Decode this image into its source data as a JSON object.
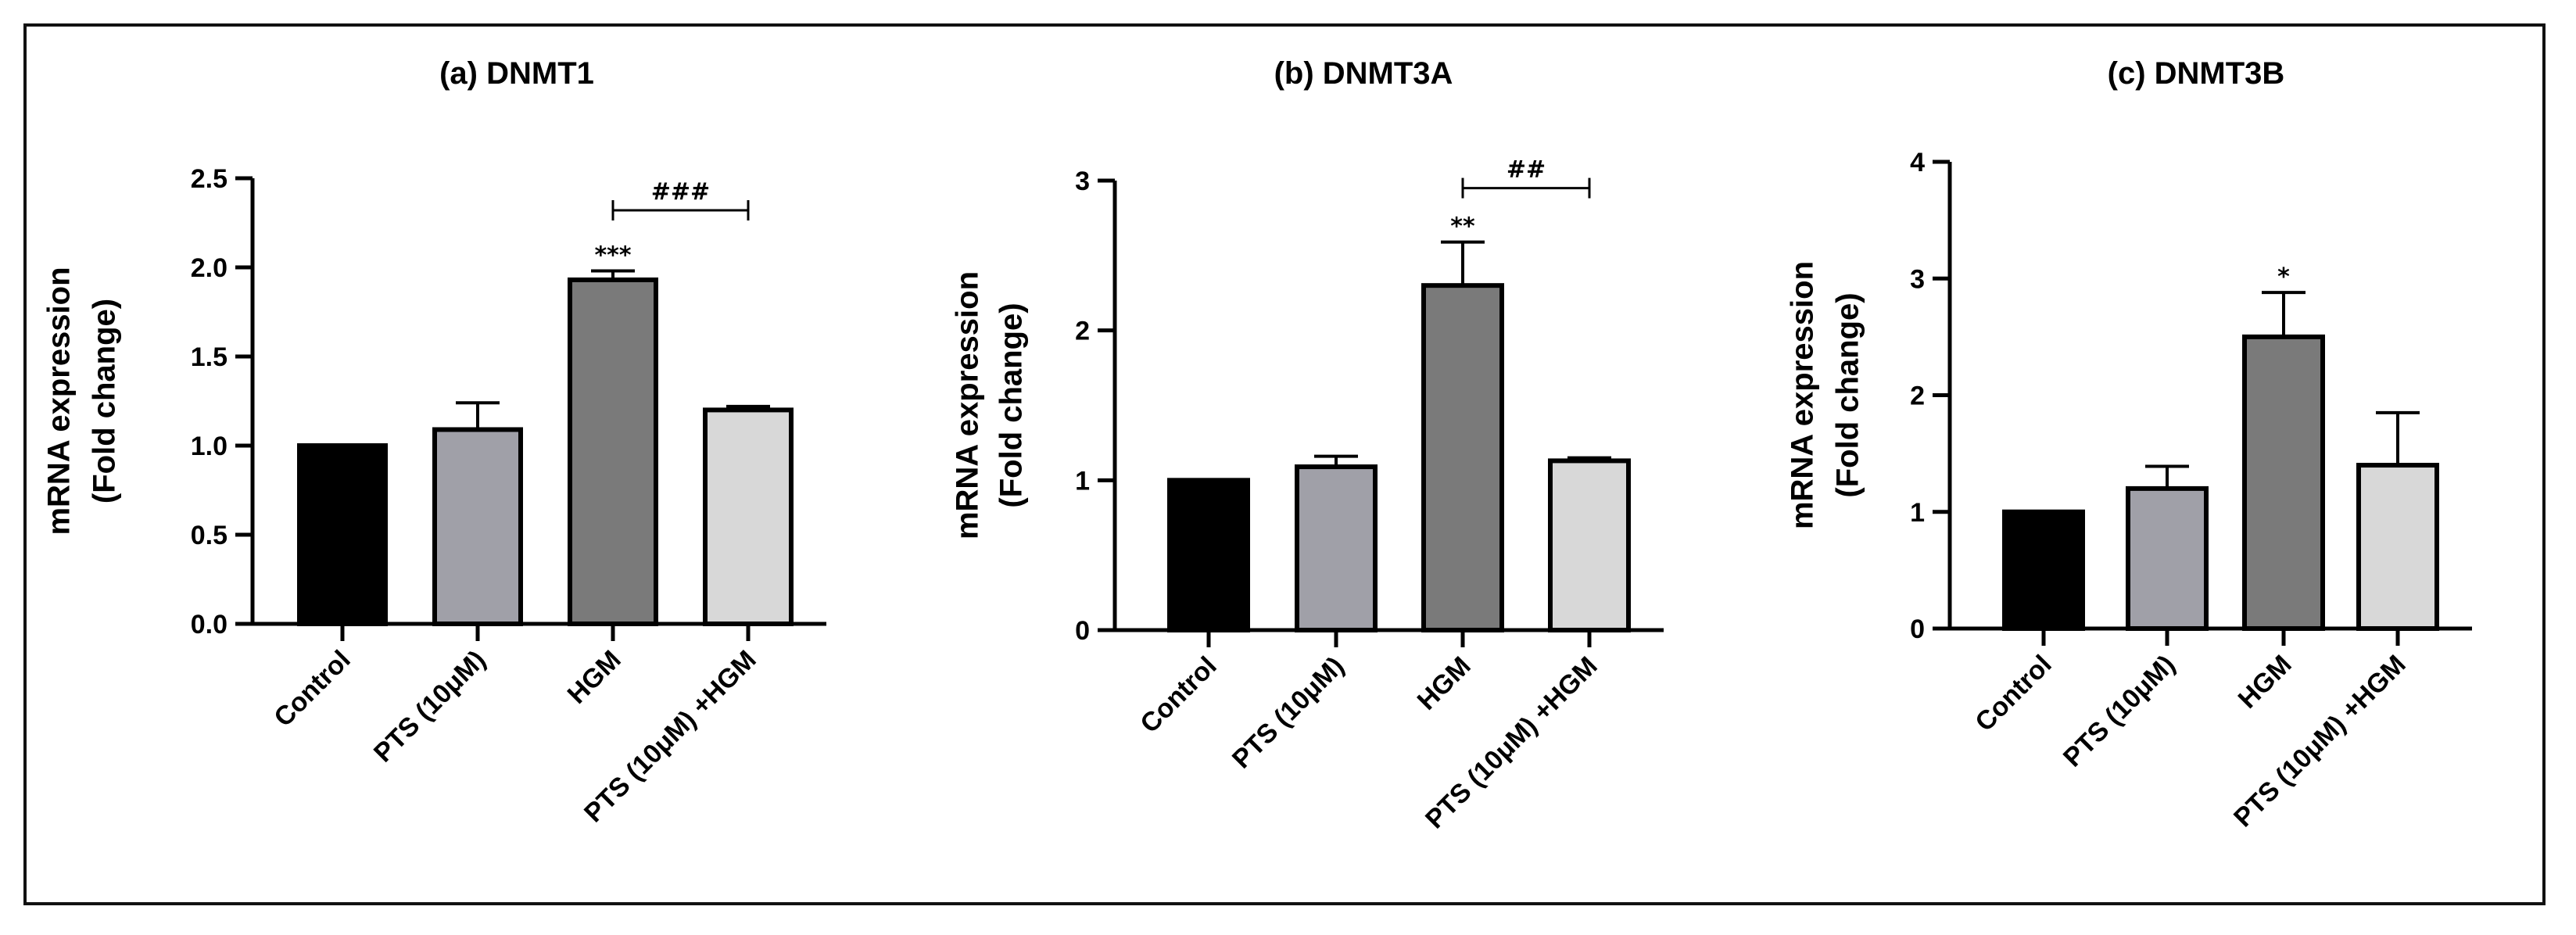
{
  "chart_data": [
    {
      "type": "bar",
      "title": "(a) DNMT1",
      "ylabel": "mRNA expression",
      "ylabel2": "(Fold change)",
      "categories": [
        "Control",
        "PTS (10μM)",
        "HGM",
        "PTS (10μM) +HGM"
      ],
      "values": [
        1.0,
        1.09,
        1.93,
        1.2
      ],
      "errors": [
        0.0,
        0.15,
        0.05,
        0.02
      ],
      "ylim": [
        0,
        2.5
      ],
      "yticks": [
        0,
        0.5,
        1.0,
        1.5,
        2.0,
        2.5
      ],
      "ytick_labels": [
        "0.0",
        "0.5",
        "1.0",
        "1.5",
        "2.0",
        "2.5"
      ],
      "star_annotations": [
        {
          "category": "HGM",
          "text": "***"
        }
      ],
      "comparison_bracket": {
        "from": "HGM",
        "to": "PTS (10μM) +HGM",
        "text": "###",
        "y": 2.32
      }
    },
    {
      "type": "bar",
      "title": "(b) DNMT3A",
      "ylabel": "mRNA expression",
      "ylabel2": "(Fold change)",
      "categories": [
        "Control",
        "PTS (10μM)",
        "HGM",
        "PTS (10μM) +HGM"
      ],
      "values": [
        1.0,
        1.09,
        2.3,
        1.13
      ],
      "errors": [
        0.0,
        0.07,
        0.29,
        0.02
      ],
      "ylim": [
        0,
        3
      ],
      "yticks": [
        0,
        1,
        2,
        3
      ],
      "ytick_labels": [
        "0",
        "1",
        "2",
        "3"
      ],
      "star_annotations": [
        {
          "category": "HGM",
          "text": "**"
        }
      ],
      "comparison_bracket": {
        "from": "HGM",
        "to": "PTS (10μM) +HGM",
        "text": "##",
        "y": 2.95
      }
    },
    {
      "type": "bar",
      "title": "(c) DNMT3B",
      "ylabel": "mRNA expression",
      "ylabel2": "(Fold change)",
      "categories": [
        "Control",
        "PTS (10μM)",
        "HGM",
        "PTS (10μM) +HGM"
      ],
      "values": [
        1.0,
        1.2,
        2.5,
        1.4
      ],
      "errors": [
        0.0,
        0.19,
        0.38,
        0.45
      ],
      "ylim": [
        0,
        4
      ],
      "yticks": [
        0,
        1,
        2,
        3,
        4
      ],
      "ytick_labels": [
        "0",
        "1",
        "2",
        "3",
        "4"
      ],
      "star_annotations": [
        {
          "category": "HGM",
          "text": "*"
        }
      ],
      "comparison_bracket": null
    }
  ],
  "colors": {
    "bars": [
      "#000000",
      "#a0a0a8",
      "#7a7a7a",
      "#d8d8d8"
    ],
    "edge": "#000000"
  }
}
